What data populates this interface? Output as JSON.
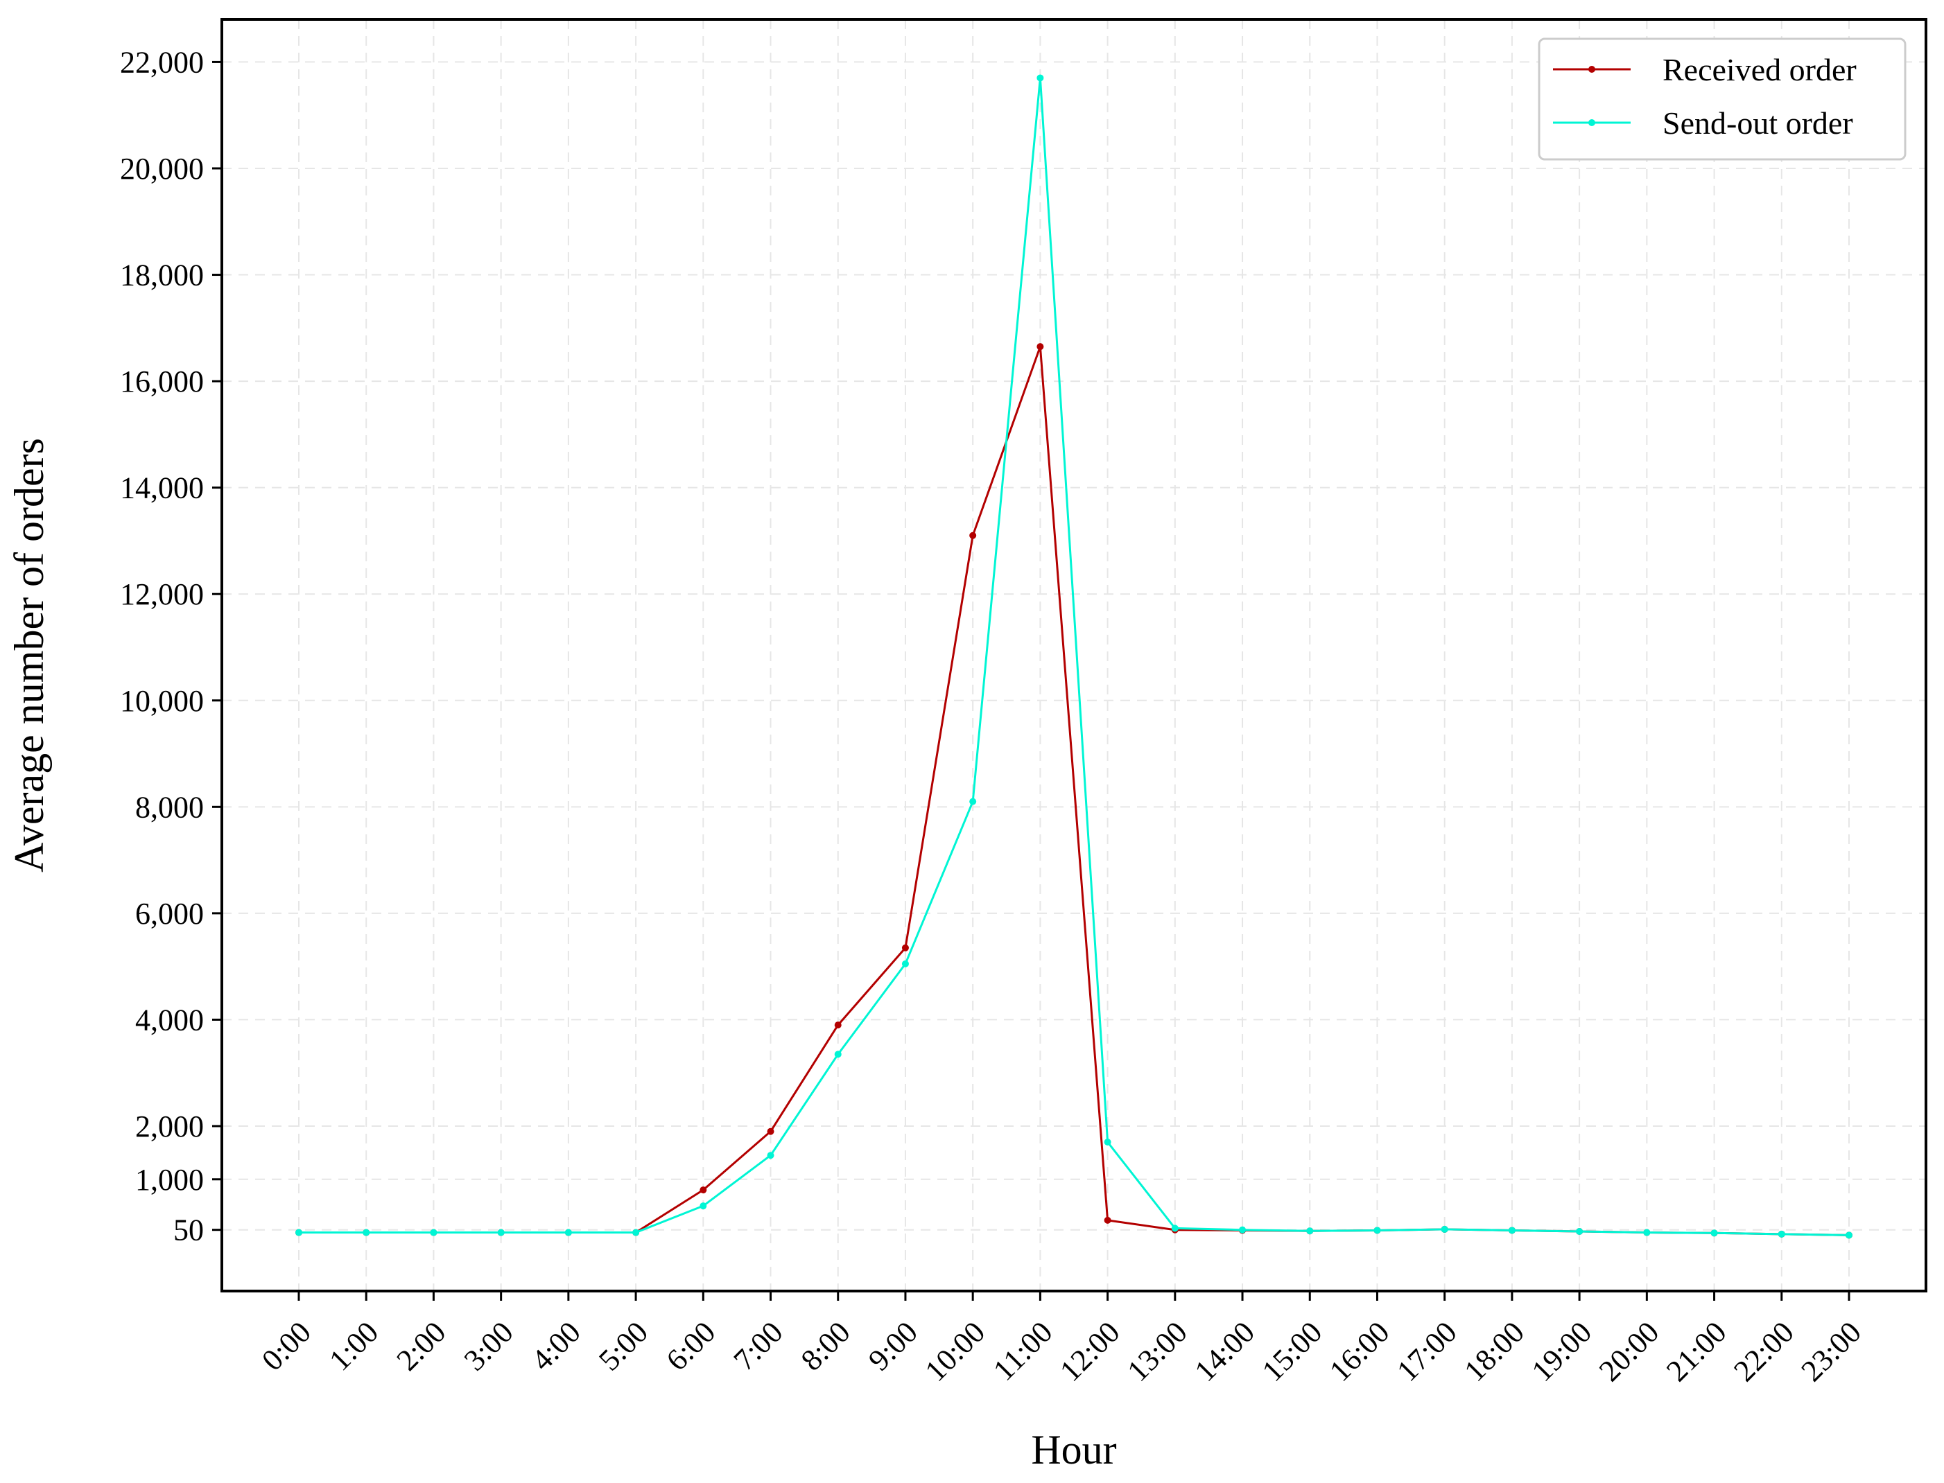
{
  "chart_data": {
    "type": "line",
    "xlabel": "Hour",
    "ylabel": "Average number of orders",
    "categories": [
      "0:00",
      "1:00",
      "2:00",
      "3:00",
      "4:00",
      "5:00",
      "6:00",
      "7:00",
      "8:00",
      "9:00",
      "10:00",
      "11:00",
      "12:00",
      "13:00",
      "14:00",
      "15:00",
      "16:00",
      "17:00",
      "18:00",
      "19:00",
      "20:00",
      "21:00",
      "22:00",
      "23:00"
    ],
    "ylim": [
      -1100,
      22800
    ],
    "yticks": [
      50,
      1000,
      2000,
      4000,
      6000,
      8000,
      10000,
      12000,
      14000,
      16000,
      18000,
      20000,
      22000
    ],
    "ytick_labels": [
      "50",
      "1,000",
      "2,000",
      "4,000",
      "6,000",
      "8,000",
      "10,000",
      "12,000",
      "14,000",
      "16,000",
      "18,000",
      "20,000",
      "22,000"
    ],
    "grid": true,
    "legend_position": "top-right",
    "series": [
      {
        "name": "Received order",
        "color": "#b30000",
        "values": [
          0,
          0,
          0,
          0,
          0,
          0,
          800,
          1900,
          3900,
          5350,
          13100,
          16650,
          230,
          50,
          40,
          30,
          40,
          60,
          40,
          20,
          0,
          -10,
          -30,
          -50
        ]
      },
      {
        "name": "Send-out order",
        "color": "#00f5d4",
        "values": [
          0,
          0,
          0,
          0,
          0,
          0,
          500,
          1450,
          3350,
          5050,
          8100,
          21700,
          1700,
          80,
          50,
          30,
          40,
          60,
          40,
          20,
          0,
          -10,
          -30,
          -50
        ]
      }
    ]
  }
}
